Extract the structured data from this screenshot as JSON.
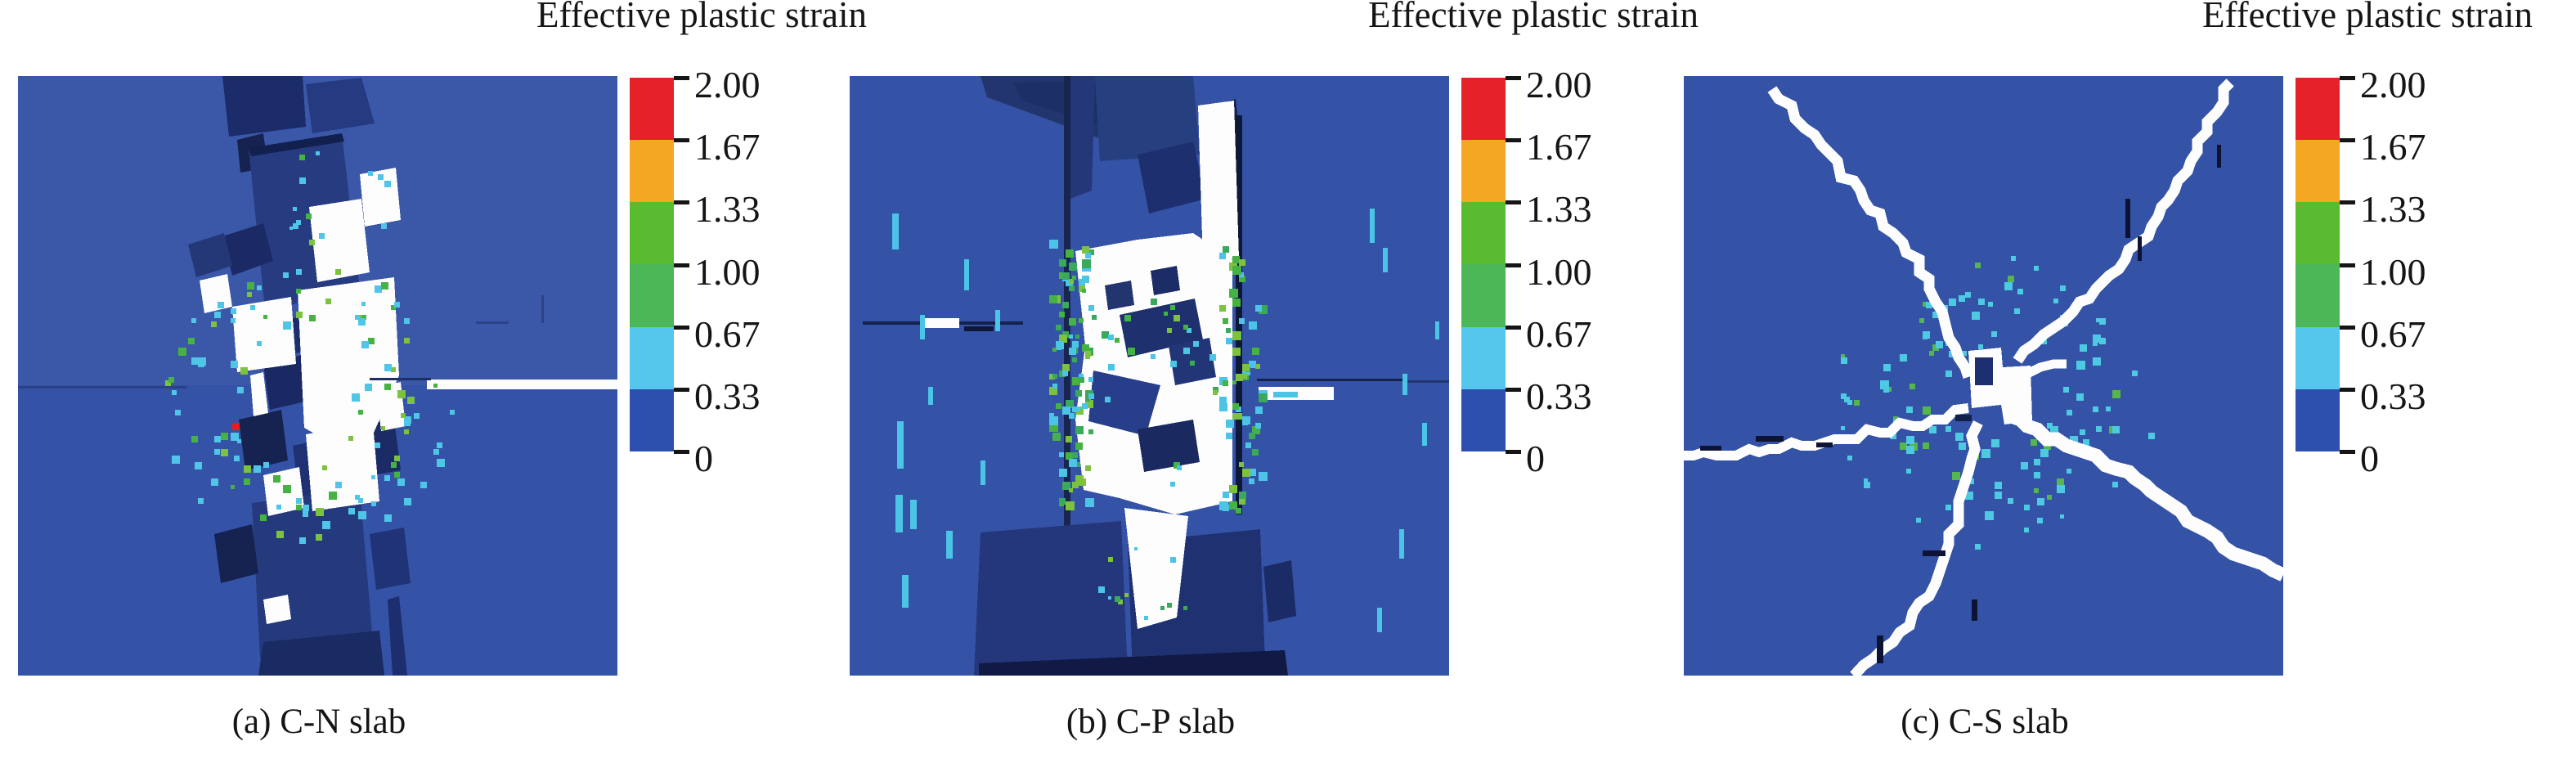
{
  "figure": {
    "panels": [
      {
        "title": "Effective plastic strain",
        "caption": "(a) C-N slab"
      },
      {
        "title": "Effective plastic strain",
        "caption": "(b) C-P slab"
      },
      {
        "title": "Effective plastic strain",
        "caption": "(c) C-S slab"
      }
    ],
    "colorbar": {
      "title": "Effective plastic strain",
      "max": 2.0,
      "min": 0,
      "tick_labels": [
        "2.00",
        "1.67",
        "1.33",
        "1.00",
        "0.67",
        "0.33",
        "0"
      ],
      "segments_top_to_bottom": [
        {
          "from": 2.0,
          "to": 1.67,
          "color": "#e62129"
        },
        {
          "from": 1.67,
          "to": 1.33,
          "color": "#f4a722"
        },
        {
          "from": 1.33,
          "to": 1.0,
          "color": "#58bb30"
        },
        {
          "from": 1.0,
          "to": 0.67,
          "color": "#4bb757"
        },
        {
          "from": 0.67,
          "to": 0.33,
          "color": "#55c6ec"
        },
        {
          "from": 0.33,
          "to": 0,
          "color": "#2d4fae"
        }
      ]
    },
    "field_colors": {
      "background_blue": "#3452a6",
      "fragment_navy": "#1e2f6e",
      "void_white": "#fdfdfd",
      "speckle_cyan": "#4fc6e8",
      "speckle_green": "#47b244"
    }
  },
  "chart_data": [
    {
      "type": "heatmap",
      "title": "Effective plastic strain",
      "panel": "(a) C-N slab",
      "colorbar_ticks": [
        2.0,
        1.67,
        1.33,
        1.0,
        0.67,
        0.33,
        0
      ],
      "range": [
        0,
        2
      ]
    },
    {
      "type": "heatmap",
      "title": "Effective plastic strain",
      "panel": "(b) C-P slab",
      "colorbar_ticks": [
        2.0,
        1.67,
        1.33,
        1.0,
        0.67,
        0.33,
        0
      ],
      "range": [
        0,
        2
      ]
    },
    {
      "type": "heatmap",
      "title": "Effective plastic strain",
      "panel": "(c) C-S slab",
      "colorbar_ticks": [
        2.0,
        1.67,
        1.33,
        1.0,
        0.67,
        0.33,
        0
      ],
      "range": [
        0,
        2
      ]
    }
  ]
}
